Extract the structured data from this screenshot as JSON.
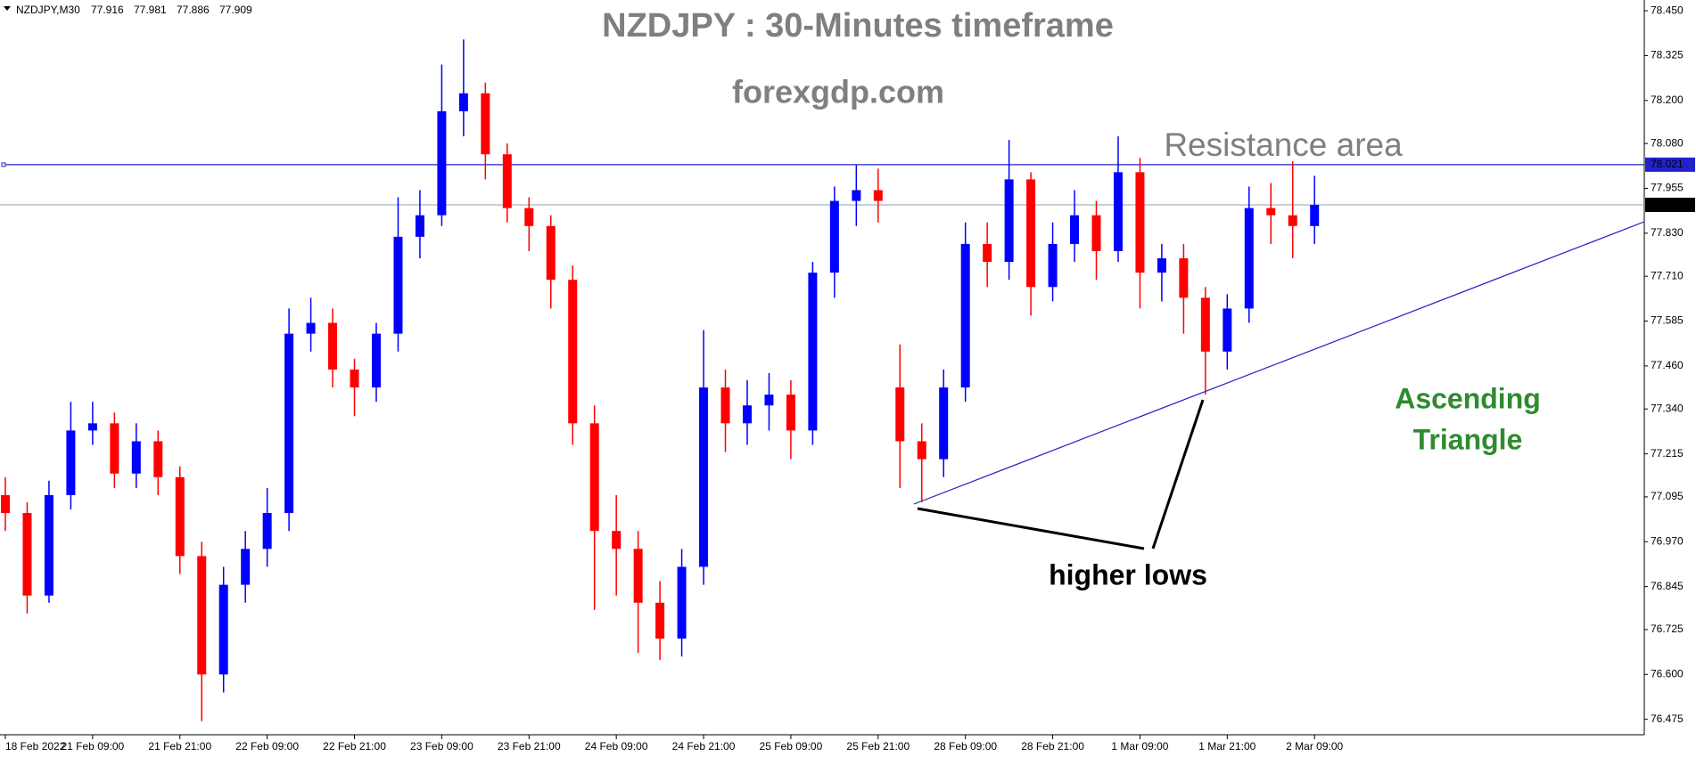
{
  "chart_data": {
    "type": "candlestick",
    "header": {
      "symbol": "NZDJPY,M30",
      "values": [
        77.916,
        77.981,
        77.886,
        77.909
      ]
    },
    "title": "NZDJPY : 30-Minutes timeframe",
    "subtitle": "forexgdp.com",
    "annotations": {
      "resistance": "Resistance area",
      "pattern": [
        "Ascending",
        "Triangle"
      ],
      "lows": "higher lows"
    },
    "resistance_level": 78.021,
    "last_price": 77.909,
    "up_color": "#0000ff",
    "down_color": "#ff0000",
    "categories": [
      "18 Feb 2022",
      null,
      null,
      null,
      "21 Feb 09:00",
      null,
      null,
      null,
      "21 Feb 21:00",
      null,
      null,
      null,
      "22 Feb 09:00",
      null,
      null,
      null,
      "22 Feb 21:00",
      null,
      null,
      null,
      "23 Feb 09:00",
      null,
      null,
      null,
      "23 Feb 21:00",
      null,
      null,
      null,
      "24 Feb 09:00",
      null,
      null,
      null,
      "24 Feb 21:00",
      null,
      null,
      null,
      "25 Feb 09:00",
      null,
      null,
      null,
      "25 Feb 21:00",
      null,
      null,
      null,
      "28 Feb 09:00",
      null,
      null,
      null,
      "28 Feb 21:00",
      null,
      null,
      null,
      "1 Mar 09:00",
      null,
      null,
      null,
      "1 Mar 21:00",
      null,
      null,
      null,
      "2 Mar 09:00"
    ],
    "open": [
      77.1,
      77.05,
      76.82,
      77.1,
      77.28,
      77.3,
      77.16,
      77.25,
      77.15,
      76.93,
      76.6,
      76.85,
      76.95,
      77.05,
      77.55,
      77.58,
      77.45,
      77.4,
      77.55,
      77.82,
      77.88,
      78.17,
      78.22,
      78.05,
      77.9,
      77.85,
      77.7,
      77.3,
      77.0,
      76.95,
      76.8,
      76.7,
      76.9,
      77.4,
      77.3,
      77.35,
      77.38,
      77.28,
      77.72,
      77.92,
      77.95,
      77.4,
      77.25,
      77.2,
      77.4,
      77.8,
      77.75,
      77.98,
      77.68,
      77.8,
      77.88,
      77.78,
      78.0,
      77.72,
      77.76,
      77.65,
      77.5,
      77.62,
      77.9,
      77.88,
      77.85
    ],
    "high": [
      77.15,
      77.08,
      77.14,
      77.36,
      77.36,
      77.33,
      77.3,
      77.28,
      77.18,
      76.97,
      76.9,
      77.0,
      77.12,
      77.62,
      77.65,
      77.62,
      77.48,
      77.58,
      77.93,
      77.95,
      78.3,
      78.37,
      78.25,
      78.08,
      77.93,
      77.88,
      77.74,
      77.35,
      77.1,
      77.0,
      76.86,
      76.95,
      77.56,
      77.45,
      77.42,
      77.44,
      77.42,
      77.75,
      77.96,
      78.02,
      78.01,
      77.52,
      77.3,
      77.45,
      77.86,
      77.86,
      78.09,
      78.0,
      77.86,
      77.95,
      77.92,
      78.1,
      78.04,
      77.8,
      77.8,
      77.68,
      77.66,
      77.96,
      77.97,
      78.03,
      77.99
    ],
    "low": [
      77.0,
      76.77,
      76.8,
      77.06,
      77.24,
      77.12,
      77.12,
      77.1,
      76.88,
      76.47,
      76.55,
      76.8,
      76.9,
      77.0,
      77.5,
      77.4,
      77.32,
      77.36,
      77.5,
      77.76,
      77.85,
      78.1,
      77.98,
      77.86,
      77.78,
      77.62,
      77.24,
      76.78,
      76.82,
      76.66,
      76.64,
      76.65,
      76.85,
      77.22,
      77.24,
      77.28,
      77.2,
      77.24,
      77.65,
      77.85,
      77.86,
      77.12,
      77.08,
      77.15,
      77.36,
      77.68,
      77.7,
      77.6,
      77.64,
      77.75,
      77.7,
      77.75,
      77.62,
      77.64,
      77.55,
      77.38,
      77.45,
      77.58,
      77.8,
      77.76,
      77.8
    ],
    "close": [
      77.05,
      76.82,
      77.1,
      77.28,
      77.3,
      77.16,
      77.25,
      77.15,
      76.93,
      76.6,
      76.85,
      76.95,
      77.05,
      77.55,
      77.58,
      77.45,
      77.4,
      77.55,
      77.82,
      77.88,
      78.17,
      78.22,
      78.05,
      77.9,
      77.85,
      77.7,
      77.3,
      77.0,
      76.95,
      76.8,
      76.7,
      76.9,
      77.4,
      77.3,
      77.35,
      77.38,
      77.28,
      77.72,
      77.92,
      77.95,
      77.92,
      77.25,
      77.2,
      77.4,
      77.8,
      77.75,
      77.98,
      77.68,
      77.8,
      77.88,
      77.78,
      78.0,
      77.72,
      77.76,
      77.65,
      77.5,
      77.62,
      77.9,
      77.88,
      77.85,
      77.909
    ],
    "ylim": [
      76.432,
      78.48
    ],
    "yticks": [
      {
        "value": 78.45,
        "label": "78.450"
      },
      78.325,
      {
        "value": 78.2,
        "label": "78.200"
      },
      {
        "value": 78.08,
        "label": "78.080"
      },
      77.955,
      {
        "value": 77.83,
        "label": "77.830"
      },
      {
        "value": 77.71,
        "label": "77.710"
      },
      77.585,
      {
        "value": 77.46,
        "label": "77.460"
      },
      {
        "value": 77.34,
        "label": "77.340"
      },
      77.215,
      77.095,
      {
        "value": 76.97,
        "label": "76.970"
      },
      76.845,
      76.725,
      {
        "value": 76.6,
        "label": "76.600"
      },
      76.475
    ]
  }
}
